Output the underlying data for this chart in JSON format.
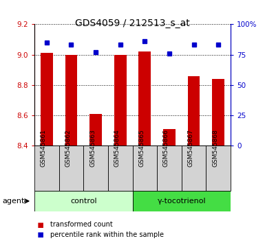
{
  "title": "GDS4059 / 212513_s_at",
  "samples": [
    "GSM545861",
    "GSM545862",
    "GSM545863",
    "GSM545864",
    "GSM545865",
    "GSM545866",
    "GSM545867",
    "GSM545868"
  ],
  "red_values": [
    9.01,
    9.0,
    8.61,
    9.0,
    9.02,
    8.51,
    8.86,
    8.84
  ],
  "blue_values": [
    85,
    83,
    77,
    83,
    86,
    76,
    83,
    83
  ],
  "ylim_left": [
    8.4,
    9.2
  ],
  "ylim_right": [
    0,
    100
  ],
  "yticks_left": [
    8.4,
    8.6,
    8.8,
    9.0,
    9.2
  ],
  "yticks_right": [
    0,
    25,
    50,
    75,
    100
  ],
  "ytick_labels_right": [
    "0",
    "25",
    "50",
    "75",
    "100%"
  ],
  "bar_color": "#cc0000",
  "dot_color": "#0000cc",
  "grid_color": "#000000",
  "control_samples": 4,
  "control_label": "control",
  "treatment_label": "γ-tocotrienol",
  "agent_label": "agent",
  "control_color": "#ccffcc",
  "treatment_color": "#44dd44",
  "label_color_red": "#cc0000",
  "label_color_blue": "#0000cc",
  "legend_red": "transformed count",
  "legend_blue": "percentile rank within the sample",
  "title_fontsize": 10,
  "tick_fontsize": 7.5,
  "bar_bottom": 8.4,
  "sample_label_fontsize": 6.5,
  "group_label_fontsize": 8,
  "agent_fontsize": 8,
  "legend_fontsize": 7
}
